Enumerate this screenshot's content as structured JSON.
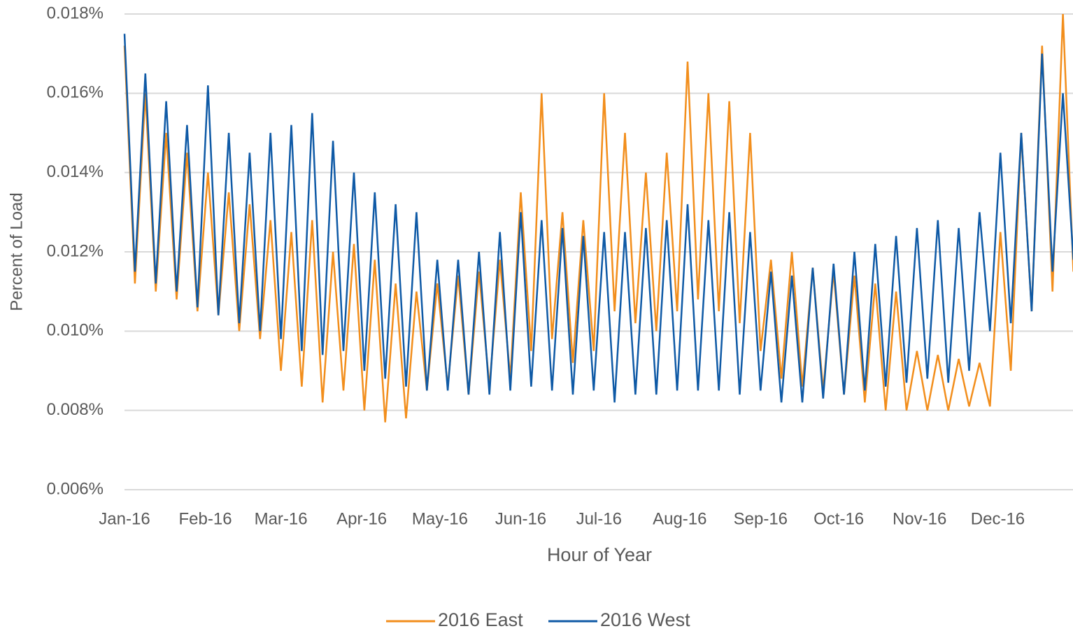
{
  "chart_data": {
    "type": "line",
    "x_label": "Hour of Year",
    "y_label": "Percent of Load",
    "xlim": [
      0,
      8784
    ],
    "ylim": [
      0.006,
      0.018
    ],
    "grid": true,
    "legend": "bottom",
    "xticks": [
      {
        "value": 0,
        "label": "Jan-16"
      },
      {
        "value": 744,
        "label": "Feb-16"
      },
      {
        "value": 1440,
        "label": "Mar-16"
      },
      {
        "value": 2184,
        "label": "Apr-16"
      },
      {
        "value": 2904,
        "label": "May-16"
      },
      {
        "value": 3648,
        "label": "Jun-16"
      },
      {
        "value": 4368,
        "label": "Jul-16"
      },
      {
        "value": 5112,
        "label": "Aug-16"
      },
      {
        "value": 5856,
        "label": "Sep-16"
      },
      {
        "value": 6576,
        "label": "Oct-16"
      },
      {
        "value": 7320,
        "label": "Nov-16"
      },
      {
        "value": 8040,
        "label": "Dec-16"
      }
    ],
    "yticks": [
      {
        "value": 0.006,
        "label": "0.006%"
      },
      {
        "value": 0.008,
        "label": "0.008%"
      },
      {
        "value": 0.01,
        "label": "0.010%"
      },
      {
        "value": 0.012,
        "label": "0.012%"
      },
      {
        "value": 0.014,
        "label": "0.014%"
      },
      {
        "value": 0.016,
        "label": "0.016%"
      },
      {
        "value": 0.018,
        "label": "0.018%"
      }
    ],
    "x": [
      0,
      96,
      192,
      288,
      384,
      480,
      576,
      672,
      768,
      864,
      960,
      1056,
      1152,
      1248,
      1344,
      1440,
      1536,
      1632,
      1728,
      1824,
      1920,
      2016,
      2112,
      2208,
      2304,
      2400,
      2496,
      2592,
      2688,
      2784,
      2880,
      2976,
      3072,
      3168,
      3264,
      3360,
      3456,
      3552,
      3648,
      3744,
      3840,
      3936,
      4032,
      4128,
      4224,
      4320,
      4416,
      4512,
      4608,
      4704,
      4800,
      4896,
      4992,
      5088,
      5184,
      5280,
      5376,
      5472,
      5568,
      5664,
      5760,
      5856,
      5952,
      6048,
      6144,
      6240,
      6336,
      6432,
      6528,
      6624,
      6720,
      6816,
      6912,
      7008,
      7104,
      7200,
      7296,
      7392,
      7488,
      7584,
      7680,
      7776,
      7872,
      7968,
      8064,
      8160,
      8256,
      8352,
      8448,
      8544,
      8640,
      8736
    ],
    "series": [
      {
        "name": "2016 East",
        "color": "#f28e1c",
        "values": [
          0.0172,
          0.0112,
          0.016,
          0.011,
          0.015,
          0.0108,
          0.0145,
          0.0105,
          0.014,
          0.0104,
          0.0135,
          0.01,
          0.0132,
          0.0098,
          0.0128,
          0.009,
          0.0125,
          0.0086,
          0.0128,
          0.0082,
          0.012,
          0.0085,
          0.0122,
          0.008,
          0.0118,
          0.0077,
          0.0112,
          0.0078,
          0.011,
          0.0085,
          0.0112,
          0.0086,
          0.0114,
          0.0084,
          0.0115,
          0.0086,
          0.0118,
          0.0088,
          0.0135,
          0.0095,
          0.016,
          0.0098,
          0.013,
          0.0092,
          0.0128,
          0.0095,
          0.016,
          0.0105,
          0.015,
          0.0102,
          0.014,
          0.01,
          0.0145,
          0.0105,
          0.0168,
          0.0108,
          0.016,
          0.0105,
          0.0158,
          0.0102,
          0.015,
          0.0095,
          0.0118,
          0.0088,
          0.012,
          0.0086,
          0.0116,
          0.0085,
          0.0115,
          0.0084,
          0.0114,
          0.0082,
          0.0112,
          0.008,
          0.011,
          0.008,
          0.0095,
          0.008,
          0.0094,
          0.008,
          0.0093,
          0.0081,
          0.0092,
          0.0081,
          0.0125,
          0.009,
          0.015,
          0.0105,
          0.0172,
          0.011,
          0.018,
          0.0115
        ]
      },
      {
        "name": "2016 West",
        "color": "#0f5aa6",
        "values": [
          0.0175,
          0.0115,
          0.0165,
          0.0112,
          0.0158,
          0.011,
          0.0152,
          0.0106,
          0.0162,
          0.0104,
          0.015,
          0.0102,
          0.0145,
          0.01,
          0.015,
          0.0098,
          0.0152,
          0.0095,
          0.0155,
          0.0094,
          0.0148,
          0.0095,
          0.014,
          0.009,
          0.0135,
          0.0088,
          0.0132,
          0.0086,
          0.013,
          0.0085,
          0.0118,
          0.0085,
          0.0118,
          0.0084,
          0.012,
          0.0084,
          0.0125,
          0.0085,
          0.013,
          0.0086,
          0.0128,
          0.0085,
          0.0126,
          0.0084,
          0.0124,
          0.0085,
          0.0125,
          0.0082,
          0.0125,
          0.0084,
          0.0126,
          0.0084,
          0.0128,
          0.0085,
          0.0132,
          0.0085,
          0.0128,
          0.0085,
          0.013,
          0.0084,
          0.0125,
          0.0085,
          0.0115,
          0.0082,
          0.0114,
          0.0082,
          0.0116,
          0.0083,
          0.0117,
          0.0084,
          0.012,
          0.0085,
          0.0122,
          0.0086,
          0.0124,
          0.0087,
          0.0126,
          0.0088,
          0.0128,
          0.0087,
          0.0126,
          0.009,
          0.013,
          0.01,
          0.0145,
          0.0102,
          0.015,
          0.0105,
          0.017,
          0.0115,
          0.016,
          0.0118
        ]
      }
    ]
  }
}
